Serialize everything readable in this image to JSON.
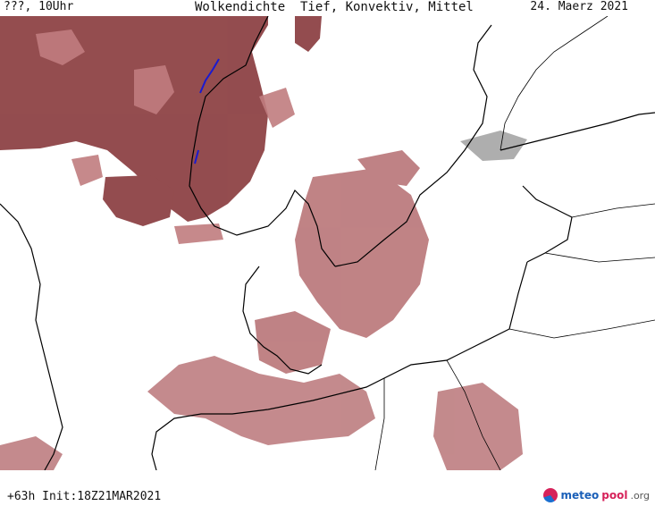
{
  "header": {
    "left": "???, 10Uhr",
    "title": "Wolkendichte  Tief, Konvektiv, Mittel",
    "date": "24. Maerz 2021"
  },
  "footer": {
    "info": "+63h Init:18Z21MAR2021",
    "logo": {
      "part1": "meteo",
      "part2": "pool",
      "part3": ".org"
    }
  },
  "colors": {
    "cloud_dark": "#8e4346",
    "cloud_mid": "#b56d70",
    "cloud_light": "#d9a5a6",
    "coast": "#000000",
    "highlight": "#1a1ad0"
  }
}
